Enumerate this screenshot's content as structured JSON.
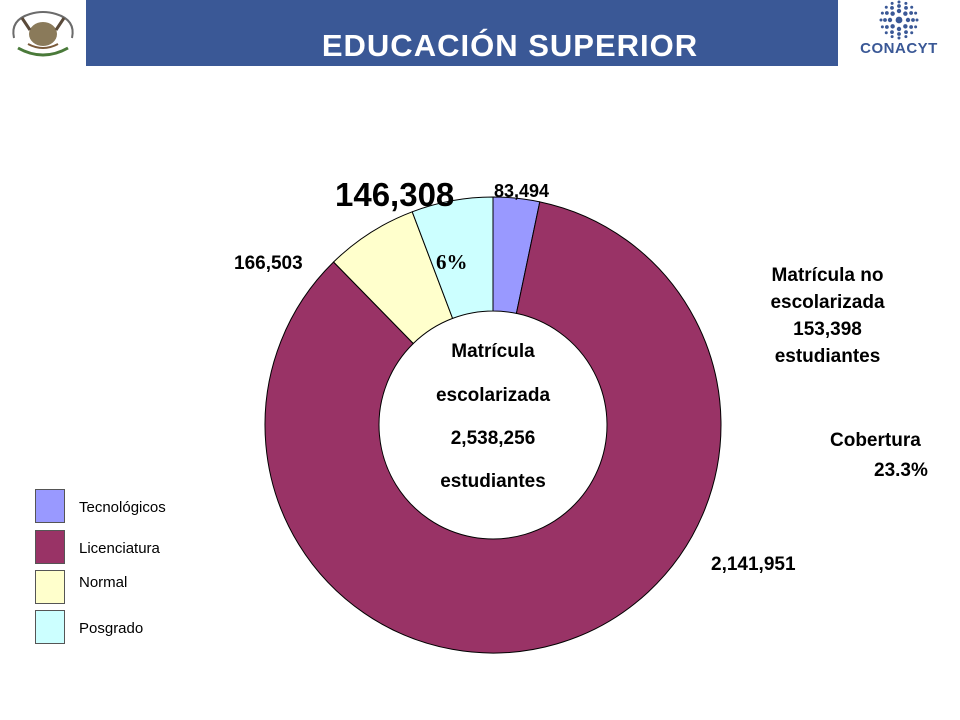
{
  "header": {
    "title": "EDUCACIÓN SUPERIOR",
    "logo_text": "CONACYT",
    "emblem_text": "ESTADOS UNIDOS MEXICANOS"
  },
  "chart_data": {
    "type": "pie",
    "title": "EDUCACIÓN SUPERIOR",
    "categories": [
      "Tecnológicos",
      "Licenciatura",
      "Normal",
      "Posgrado"
    ],
    "values": [
      83494,
      2141951,
      166503,
      146308
    ],
    "value_labels": [
      "83,494",
      "2,141,951",
      "166,503",
      "146,308"
    ],
    "colors": [
      "#9999ff",
      "#993366",
      "#ffffcc",
      "#ccffff"
    ],
    "slice_annotations": [
      {
        "category": "Posgrado",
        "text": "6%"
      }
    ],
    "legend_placement": "bottom-left",
    "center_text": [
      "Matrícula",
      "escolarizada",
      "2,538,256",
      "estudiantes"
    ]
  },
  "annotations": {
    "no_escolarizada": [
      "Matrícula no",
      "escolarizada",
      "153,398",
      "estudiantes"
    ],
    "cobertura_label": "Cobertura",
    "cobertura_value": "23.3%"
  }
}
